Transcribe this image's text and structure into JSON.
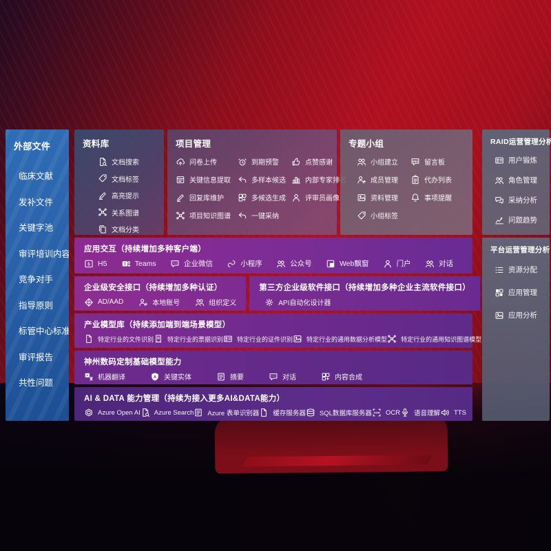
{
  "colors": {
    "accent_red": "#a50f1c",
    "sidebar_blue": "#2a63ab",
    "band_purple": "#7b2d95",
    "panel_slate": "#5c6678"
  },
  "sidebar": {
    "title": "外部文件",
    "items": [
      {
        "label": "临床文献"
      },
      {
        "label": "发补文件"
      },
      {
        "label": "关键字池"
      },
      {
        "label": "审评培训内容"
      },
      {
        "label": "竞争对手"
      },
      {
        "label": "指导原则"
      },
      {
        "label": "标管中心标准"
      },
      {
        "label": "审评报告"
      },
      {
        "label": "共性问题"
      }
    ]
  },
  "panels": {
    "repository": {
      "title": "资料库",
      "items": [
        {
          "label": "文档搜索",
          "icon": "doc-search-icon"
        },
        {
          "label": "文档标签",
          "icon": "doc-tag-icon"
        },
        {
          "label": "高亮提示",
          "icon": "highlight-icon"
        },
        {
          "label": "关系图谱",
          "icon": "relation-graph-icon"
        },
        {
          "label": "文档分类",
          "icon": "doc-classify-icon"
        }
      ]
    },
    "project": {
      "title": "项目管理",
      "items": [
        {
          "label": "问卷上传",
          "icon": "upload-cloud-icon"
        },
        {
          "label": "到期预警",
          "icon": "due-alarm-icon"
        },
        {
          "label": "点赞感谢",
          "icon": "thumbs-up-icon"
        },
        {
          "label": "关键信息提取",
          "icon": "key-info-extract-icon"
        },
        {
          "label": "多样本候选",
          "icon": "multi-sample-icon"
        },
        {
          "label": "内部专家排名",
          "icon": "expert-ranking-icon"
        },
        {
          "label": "回复库维护",
          "icon": "reply-maintain-icon"
        },
        {
          "label": "多候选生成",
          "icon": "multi-candidate-icon"
        },
        {
          "label": "评审员画像",
          "icon": "reviewer-portrait-icon"
        },
        {
          "label": "项目知识图谱",
          "icon": "project-graph-icon"
        },
        {
          "label": "一键采纳",
          "icon": "one-click-adopt-icon"
        }
      ]
    },
    "group": {
      "title": "专题小组",
      "items": [
        {
          "label": "小组建立",
          "icon": "group-create-icon"
        },
        {
          "label": "留言板",
          "icon": "message-board-icon"
        },
        {
          "label": "成员管理",
          "icon": "member-manage-icon"
        },
        {
          "label": "代办列表",
          "icon": "todo-list-icon"
        },
        {
          "label": "资料管理",
          "icon": "material-manage-icon"
        },
        {
          "label": "事项提醒",
          "icon": "event-remind-icon"
        },
        {
          "label": "小组标签",
          "icon": "group-tag-icon"
        }
      ]
    },
    "raid": {
      "title": "RAID运营管理分析",
      "items": [
        {
          "label": "用户锻炼",
          "icon": "user-card-icon"
        },
        {
          "label": "角色管理",
          "icon": "role-manage-icon"
        },
        {
          "label": "采纳分析",
          "icon": "adopt-analysis-icon"
        },
        {
          "label": "问题趋势",
          "icon": "issue-trend-icon"
        }
      ]
    },
    "platform": {
      "title": "平台运营管理分析",
      "items": [
        {
          "label": "资源分配",
          "icon": "resource-alloc-icon"
        },
        {
          "label": "应用管理",
          "icon": "app-manage-icon"
        },
        {
          "label": "应用分析",
          "icon": "app-analysis-icon"
        }
      ]
    }
  },
  "bands": {
    "interaction": {
      "title": "应用交互（持续增加多种客户端）",
      "items": [
        {
          "label": "H5",
          "icon": "h5-icon"
        },
        {
          "label": "Teams",
          "icon": "teams-icon"
        },
        {
          "label": "企业微信",
          "icon": "wechat-work-icon"
        },
        {
          "label": "小程序",
          "icon": "mini-program-icon"
        },
        {
          "label": "公众号",
          "icon": "official-account-icon"
        },
        {
          "label": "Web飘窗",
          "icon": "web-popup-icon"
        },
        {
          "label": "门户",
          "icon": "portal-icon"
        },
        {
          "label": "对话",
          "icon": "dialog-icon"
        }
      ]
    },
    "security": {
      "title": "企业级安全接口（持续增加多种认证）",
      "items": [
        {
          "label": "AD/AAD",
          "icon": "ad-aad-icon"
        },
        {
          "label": "本地账号",
          "icon": "local-account-icon"
        },
        {
          "label": "组织定义",
          "icon": "org-definition-icon"
        }
      ]
    },
    "thirdparty": {
      "title": "第三方企业级软件接口（持续增加多种企业主流软件接口）",
      "items": [
        {
          "label": "API自动化设计器",
          "icon": "api-designer-icon"
        }
      ]
    },
    "industry": {
      "title": "产业模型库（持续添加端到端场景模型）",
      "items": [
        {
          "label": "特定行业的文件识别",
          "icon": "file-recognition-icon"
        },
        {
          "label": "特定行业的票据识别",
          "icon": "receipt-recognition-icon"
        },
        {
          "label": "特定行业的证件识别",
          "icon": "certificate-recognition-icon"
        },
        {
          "label": "特定行业的通用数据分析模型",
          "icon": "data-analysis-model-icon"
        },
        {
          "label": "特定行业的通用知识图谱模型",
          "icon": "knowledge-graph-model-icon"
        }
      ]
    },
    "basemodel": {
      "title": "神州数码定制基础模型能力",
      "items": [
        {
          "label": "机器翻译",
          "icon": "machine-translate-icon"
        },
        {
          "label": "关键实体",
          "icon": "key-entity-icon"
        },
        {
          "label": "摘要",
          "icon": "summary-icon"
        },
        {
          "label": "对话",
          "icon": "chat-icon"
        },
        {
          "label": "内容合成",
          "icon": "content-compose-icon"
        }
      ]
    },
    "aidata": {
      "title": "AI & DATA 能力管理（持续为接入更多AI&DATA能力）",
      "items": [
        {
          "label": "Azure Open AI",
          "icon": "azure-openai-icon"
        },
        {
          "label": "Azure Search",
          "icon": "azure-search-icon"
        },
        {
          "label": "Azure 表单识别器",
          "icon": "azure-form-recognizer-icon"
        },
        {
          "label": "缓存服务器",
          "icon": "cache-server-icon"
        },
        {
          "label": "SQL数据库服务器",
          "icon": "sql-db-server-icon"
        },
        {
          "label": "OCR",
          "icon": "ocr-icon"
        },
        {
          "label": "语音理解",
          "icon": "speech-understanding-icon"
        },
        {
          "label": "TTS",
          "icon": "tts-icon"
        }
      ]
    }
  }
}
